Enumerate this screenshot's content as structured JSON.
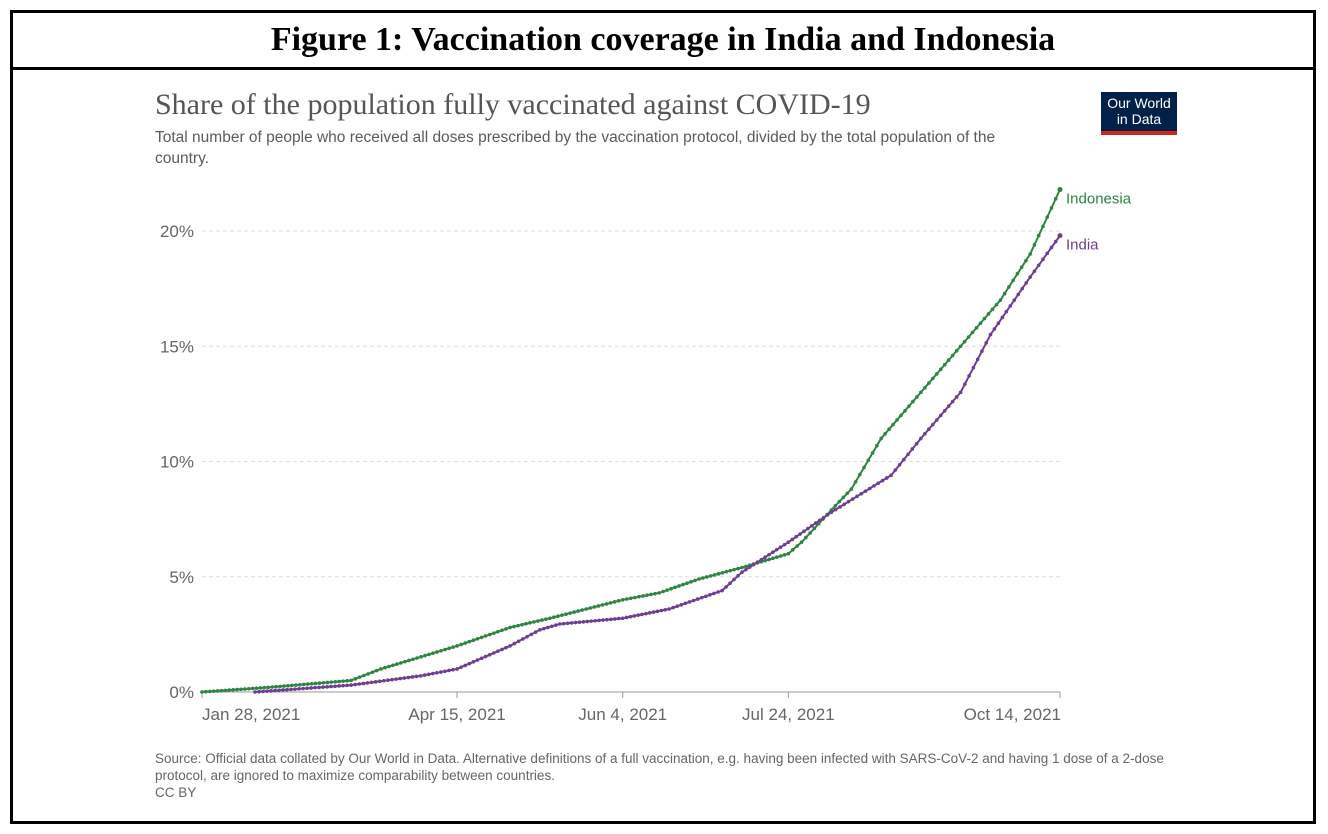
{
  "figure_title": "Figure 1: Vaccination coverage in India and Indonesia",
  "logo": {
    "line1": "Our World",
    "line2": "in Data"
  },
  "chart_data": {
    "type": "line",
    "title": "Share of the population fully vaccinated against COVID-19",
    "subtitle": "Total number of people who received all doses prescribed by the vaccination protocol, divided by the total population of the country.",
    "xlabel": "",
    "ylabel": "",
    "x_range": [
      "2021-01-28",
      "2021-10-14"
    ],
    "ylim": [
      0,
      20
    ],
    "y_ticks": [
      "0%",
      "5%",
      "10%",
      "15%",
      "20%"
    ],
    "y_tick_values": [
      0,
      5,
      10,
      15,
      20
    ],
    "x_ticks": [
      "Jan 28, 2021",
      "Apr 15, 2021",
      "Jun 4, 2021",
      "Jul 24, 2021",
      "Oct 14, 2021"
    ],
    "x_tick_dates": [
      "2021-01-28",
      "2021-04-15",
      "2021-06-04",
      "2021-07-24",
      "2021-10-14"
    ],
    "grid": true,
    "legend": "inline-right",
    "series": [
      {
        "name": "Indonesia",
        "color": "#2e8540",
        "x": [
          "2021-01-28",
          "2021-02-17",
          "2021-03-14",
          "2021-03-23",
          "2021-04-15",
          "2021-05-01",
          "2021-05-13",
          "2021-06-04",
          "2021-06-15",
          "2021-06-27",
          "2021-07-10",
          "2021-07-24",
          "2021-07-28",
          "2021-08-06",
          "2021-08-12",
          "2021-08-21",
          "2021-09-02",
          "2021-09-14",
          "2021-09-26",
          "2021-10-05",
          "2021-10-14"
        ],
        "y": [
          0,
          0.2,
          0.5,
          1.0,
          2.0,
          2.8,
          3.2,
          4.0,
          4.3,
          4.9,
          5.4,
          6.0,
          6.5,
          7.9,
          8.8,
          11.0,
          13.0,
          15.0,
          17.0,
          19.0,
          21.8
        ]
      },
      {
        "name": "India",
        "color": "#6d3e91",
        "x": [
          "2021-02-13",
          "2021-03-14",
          "2021-04-04",
          "2021-04-15",
          "2021-05-01",
          "2021-05-10",
          "2021-05-16",
          "2021-06-04",
          "2021-06-18",
          "2021-07-04",
          "2021-07-10",
          "2021-07-24",
          "2021-08-06",
          "2021-08-15",
          "2021-08-24",
          "2021-09-02",
          "2021-09-14",
          "2021-09-23",
          "2021-10-05",
          "2021-10-14"
        ],
        "y": [
          0,
          0.3,
          0.7,
          1.0,
          2.0,
          2.7,
          2.95,
          3.2,
          3.6,
          4.4,
          5.2,
          6.5,
          7.8,
          8.6,
          9.4,
          11.0,
          13.0,
          15.5,
          18.0,
          19.8
        ]
      }
    ]
  },
  "source": "Source: Official data collated by Our World in Data. Alternative definitions of a full vaccination, e.g. having been infected with SARS-CoV-2 and having 1 dose of a 2-dose protocol, are ignored to maximize comparability between countries.",
  "license": "CC BY"
}
